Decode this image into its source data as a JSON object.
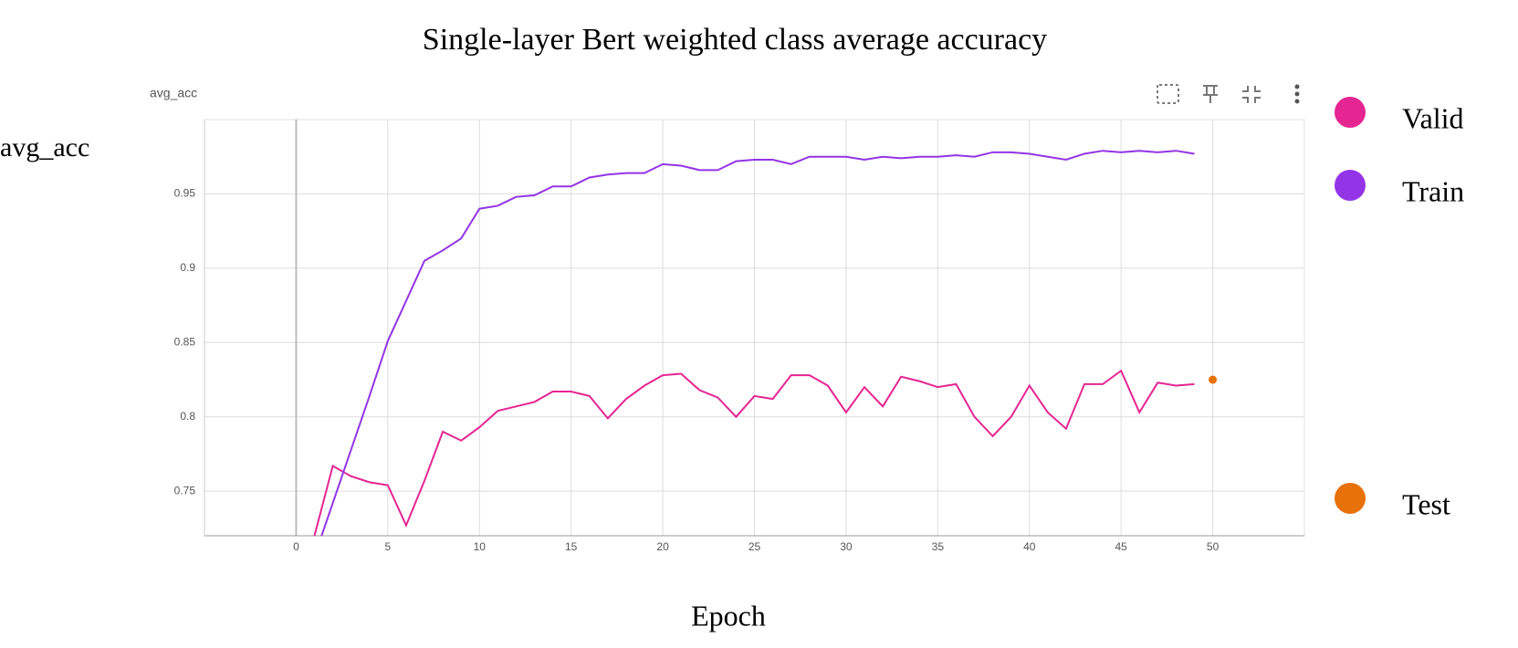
{
  "chart_data": {
    "type": "line",
    "title": "Single-layer Bert weighted class average accuracy",
    "panel_title": "avg_acc",
    "ylabel": "avg_acc",
    "xlabel": "Epoch",
    "xlim": [
      -5,
      55
    ],
    "ylim": [
      0.72,
      1.0
    ],
    "xticks": [
      0,
      5,
      10,
      15,
      20,
      25,
      30,
      35,
      40,
      45,
      50
    ],
    "yticks": [
      0.75,
      0.8,
      0.85,
      0.9,
      0.95
    ],
    "grid": true,
    "legend": "right",
    "series": [
      {
        "name": "Valid",
        "color": "#e52592",
        "x": [
          1,
          2,
          3,
          4,
          5,
          6,
          7,
          8,
          9,
          10,
          11,
          12,
          13,
          14,
          15,
          16,
          17,
          18,
          19,
          20,
          21,
          22,
          23,
          24,
          25,
          26,
          27,
          28,
          29,
          30,
          31,
          32,
          33,
          34,
          35,
          36,
          37,
          38,
          39,
          40,
          41,
          42,
          43,
          44,
          45,
          46,
          47,
          48,
          49
        ],
        "values": [
          0.72,
          0.767,
          0.76,
          0.756,
          0.754,
          0.727,
          0.757,
          0.79,
          0.784,
          0.793,
          0.804,
          0.807,
          0.81,
          0.817,
          0.817,
          0.814,
          0.799,
          0.812,
          0.821,
          0.828,
          0.829,
          0.818,
          0.813,
          0.8,
          0.814,
          0.812,
          0.828,
          0.828,
          0.821,
          0.803,
          0.82,
          0.807,
          0.827,
          0.824,
          0.82,
          0.822,
          0.8,
          0.787,
          0.8,
          0.821,
          0.803,
          0.792,
          0.822,
          0.822,
          0.831,
          0.803,
          0.823,
          0.821,
          0.822
        ]
      },
      {
        "name": "Train",
        "color": "#9334e6",
        "x": [
          1,
          2,
          3,
          4,
          5,
          6,
          7,
          8,
          9,
          10,
          11,
          12,
          13,
          14,
          15,
          16,
          17,
          18,
          19,
          20,
          21,
          22,
          23,
          24,
          25,
          26,
          27,
          28,
          29,
          30,
          31,
          32,
          33,
          34,
          35,
          36,
          37,
          38,
          39,
          40,
          41,
          42,
          43,
          44,
          45,
          46,
          47,
          48,
          49
        ],
        "values": [
          0.706,
          0.742,
          0.778,
          0.814,
          0.851,
          0.878,
          0.905,
          0.912,
          0.92,
          0.94,
          0.942,
          0.948,
          0.949,
          0.955,
          0.955,
          0.961,
          0.963,
          0.964,
          0.964,
          0.97,
          0.969,
          0.966,
          0.966,
          0.972,
          0.973,
          0.973,
          0.97,
          0.975,
          0.975,
          0.975,
          0.973,
          0.975,
          0.974,
          0.975,
          0.975,
          0.976,
          0.975,
          0.978,
          0.978,
          0.977,
          0.975,
          0.973,
          0.977,
          0.979,
          0.978,
          0.979,
          0.978,
          0.979,
          0.977
        ]
      },
      {
        "name": "Test",
        "color": "#e8710a",
        "x": [
          50
        ],
        "values": [
          0.825
        ]
      }
    ]
  }
}
